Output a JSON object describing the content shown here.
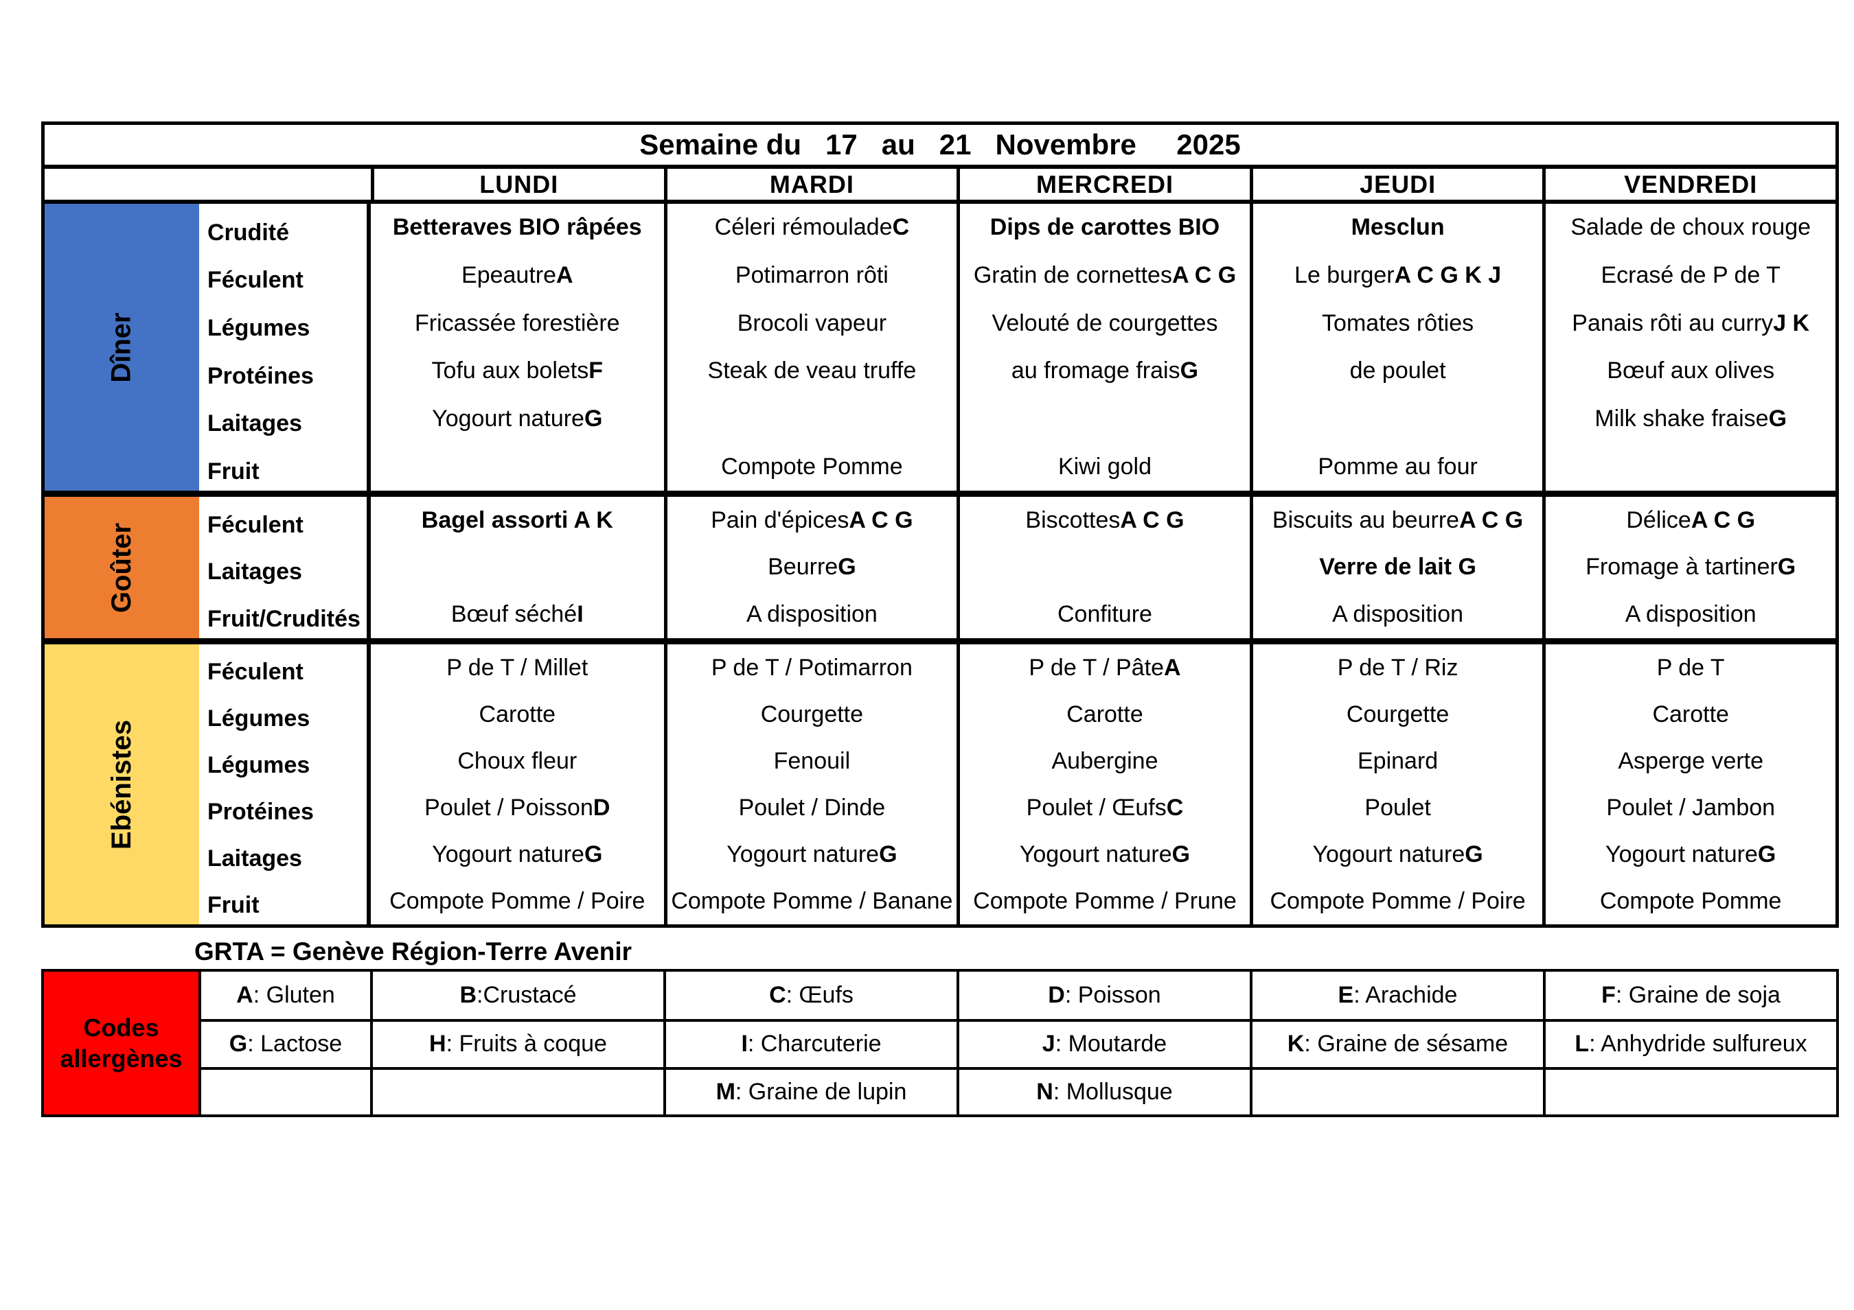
{
  "title": "Semaine du   17   au   21   Novembre     2025",
  "week_days": [
    "LUNDI",
    "MARDI",
    "MERCREDI",
    "JEUDI",
    "VENDREDI"
  ],
  "colors": {
    "title_bg": "#FFC000",
    "diner_band": "#4472C4",
    "gouter_band": "#ED7D31",
    "ebenistes_band": "#FFD966",
    "allergen_label_bg": "#FF0000"
  },
  "sections": [
    {
      "label": "Dîner",
      "row_labels": [
        "Crudité",
        "Féculent",
        "Légumes",
        "Protéines",
        "Laitages",
        "Fruit"
      ],
      "cells": [
        [
          [
            [
              "Betteraves BIO râpées",
              1
            ]
          ],
          [
            [
              "Epeautre ",
              0
            ],
            [
              "A",
              1
            ]
          ],
          [
            [
              "Fricassée forestière",
              0
            ]
          ],
          [
            [
              "Tofu aux bolets ",
              0
            ],
            [
              "F",
              1
            ]
          ],
          [
            [
              "Yogourt nature ",
              0
            ],
            [
              "G",
              1
            ]
          ],
          []
        ],
        [
          [
            [
              "Céleri rémoulade ",
              0
            ],
            [
              "C",
              1
            ]
          ],
          [
            [
              "Potimarron rôti",
              0
            ]
          ],
          [
            [
              "Brocoli vapeur",
              0
            ]
          ],
          [
            [
              "Steak de veau truffe",
              0
            ]
          ],
          [],
          [
            [
              "Compote Pomme",
              0
            ]
          ]
        ],
        [
          [
            [
              "Dips de carottes BIO",
              1
            ]
          ],
          [
            [
              "Gratin de cornettes ",
              0
            ],
            [
              "A C G",
              1
            ]
          ],
          [
            [
              "Velouté de courgettes",
              0
            ]
          ],
          [
            [
              "au fromage frais ",
              0
            ],
            [
              "G",
              1
            ]
          ],
          [],
          [
            [
              "Kiwi gold",
              0
            ]
          ]
        ],
        [
          [
            [
              "Mesclun",
              1
            ]
          ],
          [
            [
              "Le burger ",
              0
            ],
            [
              "A C G K J",
              1
            ]
          ],
          [
            [
              "Tomates rôties",
              0
            ]
          ],
          [
            [
              "de poulet",
              0
            ]
          ],
          [],
          [
            [
              "Pomme au four",
              0
            ]
          ]
        ],
        [
          [
            [
              "Salade de choux rouge",
              0
            ]
          ],
          [
            [
              "Ecrasé de P de T",
              0
            ]
          ],
          [
            [
              "Panais rôti au curry ",
              0
            ],
            [
              "J K",
              1
            ]
          ],
          [
            [
              "Bœuf aux olives",
              0
            ]
          ],
          [
            [
              "Milk shake fraise ",
              0
            ],
            [
              "G",
              1
            ]
          ],
          []
        ]
      ]
    },
    {
      "label": "Goûter",
      "row_labels": [
        "Féculent",
        "Laitages",
        "Fruit/Crudités"
      ],
      "cells": [
        [
          [
            [
              "Bagel assorti A K",
              1
            ]
          ],
          [],
          [
            [
              "Bœuf séché ",
              0
            ],
            [
              "I",
              1
            ]
          ]
        ],
        [
          [
            [
              "Pain d'épices ",
              0
            ],
            [
              "A C G",
              1
            ]
          ],
          [
            [
              "Beurre ",
              0
            ],
            [
              "G",
              1
            ]
          ],
          [
            [
              "A disposition",
              0
            ]
          ]
        ],
        [
          [
            [
              "Biscottes ",
              0
            ],
            [
              "A C G",
              1
            ]
          ],
          [],
          [
            [
              "Confiture",
              0
            ]
          ]
        ],
        [
          [
            [
              "Biscuits au beurre ",
              0
            ],
            [
              "A C G",
              1
            ]
          ],
          [
            [
              "Verre de lait G",
              1
            ]
          ],
          [
            [
              "A disposition",
              0
            ]
          ]
        ],
        [
          [
            [
              "Délice ",
              0
            ],
            [
              "A C G",
              1
            ]
          ],
          [
            [
              "Fromage à tartiner ",
              0
            ],
            [
              "G",
              1
            ]
          ],
          [
            [
              "A disposition",
              0
            ]
          ]
        ]
      ]
    },
    {
      "label": "Ebénistes",
      "row_labels": [
        "Féculent",
        "Légumes",
        "Légumes",
        "Protéines",
        "Laitages",
        "Fruit"
      ],
      "cells": [
        [
          [
            [
              "P de T / Millet",
              0
            ]
          ],
          [
            [
              "Carotte",
              0
            ]
          ],
          [
            [
              "Choux fleur",
              0
            ]
          ],
          [
            [
              "Poulet / Poisson ",
              0
            ],
            [
              "D",
              1
            ]
          ],
          [
            [
              "Yogourt nature ",
              0
            ],
            [
              "G",
              1
            ]
          ],
          [
            [
              "Compote Pomme / Poire",
              0
            ]
          ]
        ],
        [
          [
            [
              "P de T / Potimarron",
              0
            ]
          ],
          [
            [
              "Courgette",
              0
            ]
          ],
          [
            [
              "Fenouil",
              0
            ]
          ],
          [
            [
              "Poulet / Dinde",
              0
            ]
          ],
          [
            [
              "Yogourt nature ",
              0
            ],
            [
              "G",
              1
            ]
          ],
          [
            [
              "Compote Pomme / Banane",
              0
            ]
          ]
        ],
        [
          [
            [
              "P de T / Pâte ",
              0
            ],
            [
              "A",
              1
            ]
          ],
          [
            [
              "Carotte",
              0
            ]
          ],
          [
            [
              "Aubergine",
              0
            ]
          ],
          [
            [
              "Poulet / Œufs ",
              0
            ],
            [
              "C",
              1
            ]
          ],
          [
            [
              "Yogourt nature ",
              0
            ],
            [
              "G",
              1
            ]
          ],
          [
            [
              "Compote Pomme / Prune",
              0
            ]
          ]
        ],
        [
          [
            [
              "P de T / Riz",
              0
            ]
          ],
          [
            [
              "Courgette",
              0
            ]
          ],
          [
            [
              "Epinard",
              0
            ]
          ],
          [
            [
              "Poulet",
              0
            ]
          ],
          [
            [
              "Yogourt nature ",
              0
            ],
            [
              "G",
              1
            ]
          ],
          [
            [
              "Compote Pomme / Poire",
              0
            ]
          ]
        ],
        [
          [
            [
              "P de T",
              0
            ]
          ],
          [
            [
              "Carotte",
              0
            ]
          ],
          [
            [
              "Asperge verte",
              0
            ]
          ],
          [
            [
              "Poulet / Jambon",
              0
            ]
          ],
          [
            [
              "Yogourt nature ",
              0
            ],
            [
              "G",
              1
            ]
          ],
          [
            [
              "Compote Pomme",
              0
            ]
          ]
        ]
      ]
    }
  ],
  "grta_note": "GRTA = Genève Région-Terre Avenir",
  "allergen_table": {
    "label_lines": [
      "Codes",
      "allergènes"
    ],
    "rows": [
      [
        [
          [
            "A",
            1
          ],
          [
            " : Gluten",
            0
          ]
        ],
        [
          [
            "B",
            1
          ],
          [
            " :Crustacé",
            0
          ]
        ],
        [
          [
            "C",
            1
          ],
          [
            " : Œufs",
            0
          ]
        ],
        [
          [
            "D",
            1
          ],
          [
            " : Poisson",
            0
          ]
        ],
        [
          [
            "E",
            1
          ],
          [
            " : Arachide",
            0
          ]
        ],
        [
          [
            "F",
            1
          ],
          [
            " : Graine de soja",
            0
          ]
        ]
      ],
      [
        [
          [
            "G",
            1
          ],
          [
            " : Lactose",
            0
          ]
        ],
        [
          [
            "H",
            1
          ],
          [
            " : Fruits à coque",
            0
          ]
        ],
        [
          [
            "I",
            1
          ],
          [
            " : Charcuterie",
            0
          ]
        ],
        [
          [
            "J",
            1
          ],
          [
            " : Moutarde",
            0
          ]
        ],
        [
          [
            "K",
            1
          ],
          [
            " : Graine de sésame",
            0
          ]
        ],
        [
          [
            "L",
            1
          ],
          [
            " : Anhydride sulfureux",
            0
          ]
        ]
      ],
      [
        [],
        [],
        [
          [
            "M",
            1
          ],
          [
            " : Graine de lupin",
            0
          ]
        ],
        [
          [
            "N",
            1
          ],
          [
            " : Mollusque",
            0
          ]
        ],
        [],
        []
      ]
    ]
  }
}
